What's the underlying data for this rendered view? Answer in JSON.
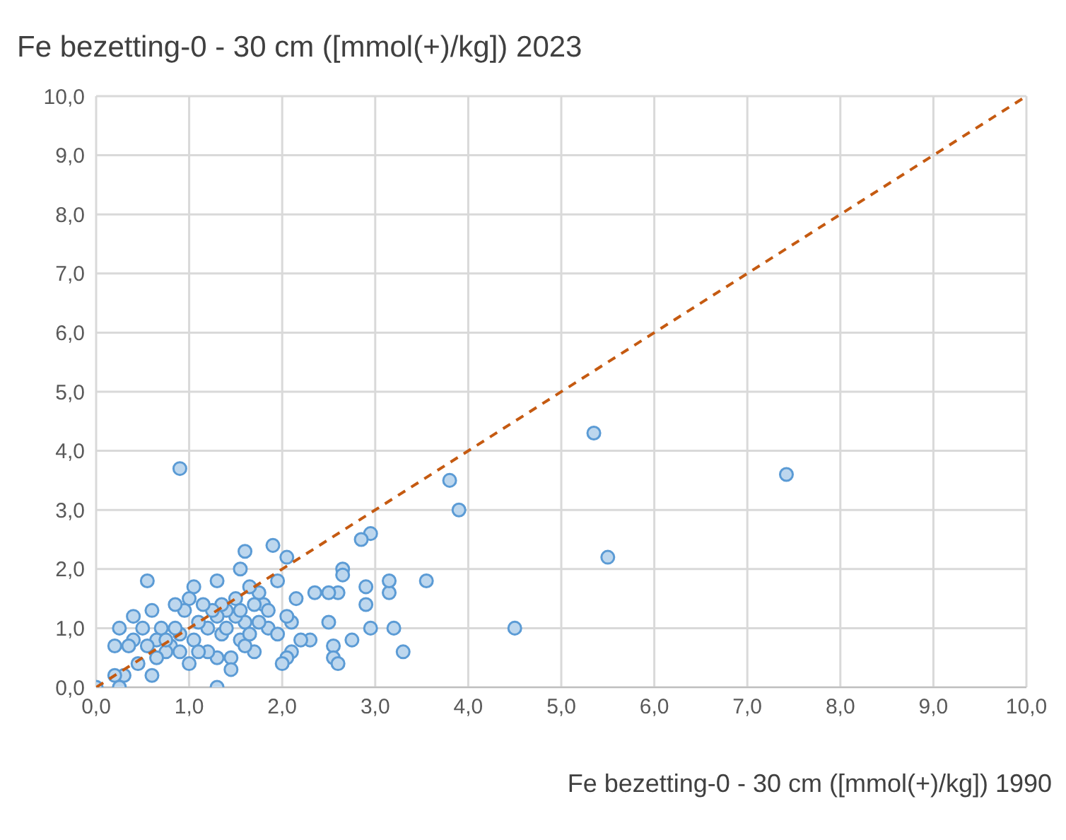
{
  "chart_data": {
    "type": "scatter",
    "title": "Fe bezetting-0 - 30 cm ([mmol(+)/kg]) 2023",
    "xlabel": "Fe bezetting-0 - 30 cm ([mmol(+)/kg]) 1990",
    "grid": true,
    "xlim": [
      0,
      10
    ],
    "ylim": [
      0,
      10
    ],
    "xticks": [
      {
        "value": 0,
        "label": "0,0"
      },
      {
        "value": 1,
        "label": "1,0"
      },
      {
        "value": 2,
        "label": "2,0"
      },
      {
        "value": 3,
        "label": "3,0"
      },
      {
        "value": 4,
        "label": "4,0"
      },
      {
        "value": 5,
        "label": "5,0"
      },
      {
        "value": 6,
        "label": "6,0"
      },
      {
        "value": 7,
        "label": "7,0"
      },
      {
        "value": 8,
        "label": "8,0"
      },
      {
        "value": 9,
        "label": "9,0"
      },
      {
        "value": 10,
        "label": "10,0"
      }
    ],
    "yticks": [
      {
        "value": 0,
        "label": "0,0"
      },
      {
        "value": 1,
        "label": "1,0"
      },
      {
        "value": 2,
        "label": "2,0"
      },
      {
        "value": 3,
        "label": "3,0"
      },
      {
        "value": 4,
        "label": "4,0"
      },
      {
        "value": 5,
        "label": "5,0"
      },
      {
        "value": 6,
        "label": "6,0"
      },
      {
        "value": 7,
        "label": "7,0"
      },
      {
        "value": 8,
        "label": "8,0"
      },
      {
        "value": 9,
        "label": "9,0"
      },
      {
        "value": 10,
        "label": "10,0"
      }
    ],
    "series": [
      {
        "marker": "circle",
        "color": "#5b9bd5",
        "x": [
          0.9,
          5.35,
          7.42,
          5.5,
          4.5,
          3.9,
          3.8,
          3.55,
          3.3,
          3.2,
          3.15,
          3.15,
          2.95,
          2.85,
          2.95,
          2.9,
          2.9,
          2.65,
          2.65,
          2.6,
          2.5,
          2.5,
          2.55,
          2.55,
          2.6,
          2.75,
          2.35,
          2.3,
          2.2,
          2.15,
          2.1,
          2.05,
          2.05,
          2.1,
          2.05,
          2.0,
          1.95,
          1.9,
          1.85,
          1.8,
          1.75,
          1.7,
          1.7,
          1.65,
          1.6,
          1.6,
          1.55,
          1.55,
          1.5,
          1.5,
          1.45,
          1.45,
          1.4,
          1.35,
          1.35,
          1.3,
          1.3,
          1.3,
          1.3,
          1.25,
          1.2,
          1.2,
          1.15,
          1.1,
          1.05,
          1.05,
          1.0,
          1.0,
          0.95,
          0.9,
          0.85,
          0.85,
          0.8,
          0.75,
          0.7,
          0.65,
          0.65,
          0.6,
          0.6,
          0.55,
          0.55,
          0.5,
          0.45,
          0.4,
          0.4,
          0.35,
          0.3,
          0.25,
          0.2,
          0.2,
          0.25,
          0.0,
          0.9,
          1.1,
          1.4,
          1.6,
          1.75,
          1.85,
          1.95,
          0.75,
          1.55,
          1.65
        ],
        "values": [
          3.7,
          4.3,
          3.6,
          2.2,
          1.0,
          3.0,
          3.5,
          1.8,
          0.6,
          1.0,
          1.6,
          1.8,
          2.6,
          2.5,
          1.0,
          1.7,
          1.4,
          2.0,
          1.9,
          1.6,
          1.6,
          1.1,
          0.7,
          0.5,
          0.4,
          0.8,
          1.6,
          0.8,
          0.8,
          1.5,
          1.1,
          2.2,
          1.2,
          0.6,
          0.5,
          0.4,
          1.8,
          2.4,
          1.0,
          1.4,
          1.6,
          1.4,
          0.6,
          1.7,
          2.3,
          1.1,
          2.0,
          0.8,
          1.5,
          1.2,
          0.5,
          0.3,
          1.3,
          1.4,
          0.9,
          1.8,
          1.2,
          0.5,
          0.0,
          1.3,
          1.0,
          0.6,
          1.4,
          1.1,
          1.7,
          0.8,
          1.5,
          0.4,
          1.3,
          0.9,
          1.4,
          1.0,
          0.7,
          0.6,
          1.0,
          0.8,
          0.5,
          1.3,
          0.2,
          1.8,
          0.7,
          1.0,
          0.4,
          1.2,
          0.8,
          0.7,
          0.2,
          1.0,
          0.7,
          0.2,
          0.0,
          0.0,
          0.6,
          0.6,
          1.0,
          0.7,
          1.1,
          1.3,
          0.9,
          0.8,
          1.3,
          0.9
        ]
      },
      {
        "type": "line",
        "marker": "none",
        "color": "#c55a11",
        "line_style": "dashed",
        "x": [
          0,
          10
        ],
        "values": [
          0,
          10
        ]
      }
    ]
  }
}
